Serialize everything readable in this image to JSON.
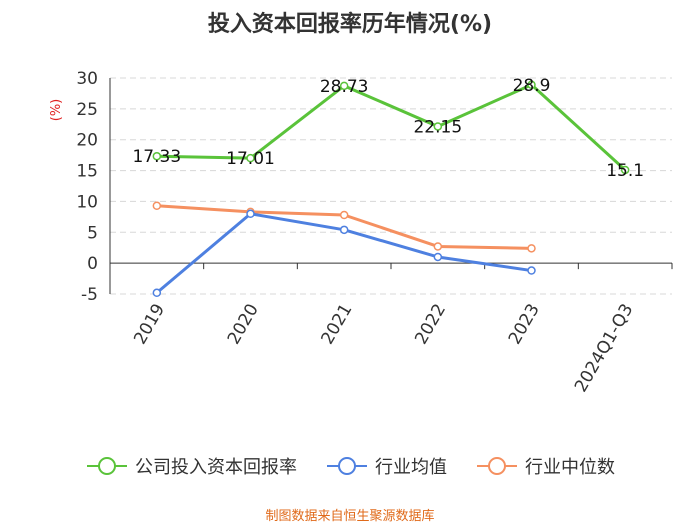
{
  "title": "投入资本回报率历年情况(%)",
  "source": "制图数据来自恒生聚源数据库",
  "chart_data": {
    "type": "line",
    "title": "投入资本回报率历年情况(%)",
    "ylabel": "(%)",
    "categories": [
      "2019",
      "2020",
      "2021",
      "2022",
      "2023",
      "2024Q1-Q3"
    ],
    "ylim": [
      -5,
      30
    ],
    "yticks": [
      -5,
      0,
      5,
      10,
      15,
      20,
      25,
      30
    ],
    "grid": "horizontal dashed",
    "legend_position": "bottom",
    "series": [
      {
        "name": "公司投入资本回报率",
        "color": "#5ac33a",
        "values": [
          17.33,
          17.01,
          28.73,
          22.15,
          28.9,
          15.1
        ],
        "labels": [
          "17.33",
          "17.01",
          "28.73",
          "22.15",
          "28.9",
          "15.1"
        ]
      },
      {
        "name": "行业均值",
        "color": "#4e80e0",
        "values": [
          -4.8,
          8.0,
          5.4,
          1.0,
          -1.2,
          null
        ]
      },
      {
        "name": "行业中位数",
        "color": "#f59060",
        "values": [
          9.3,
          8.3,
          7.8,
          2.7,
          2.4,
          null
        ]
      }
    ]
  }
}
